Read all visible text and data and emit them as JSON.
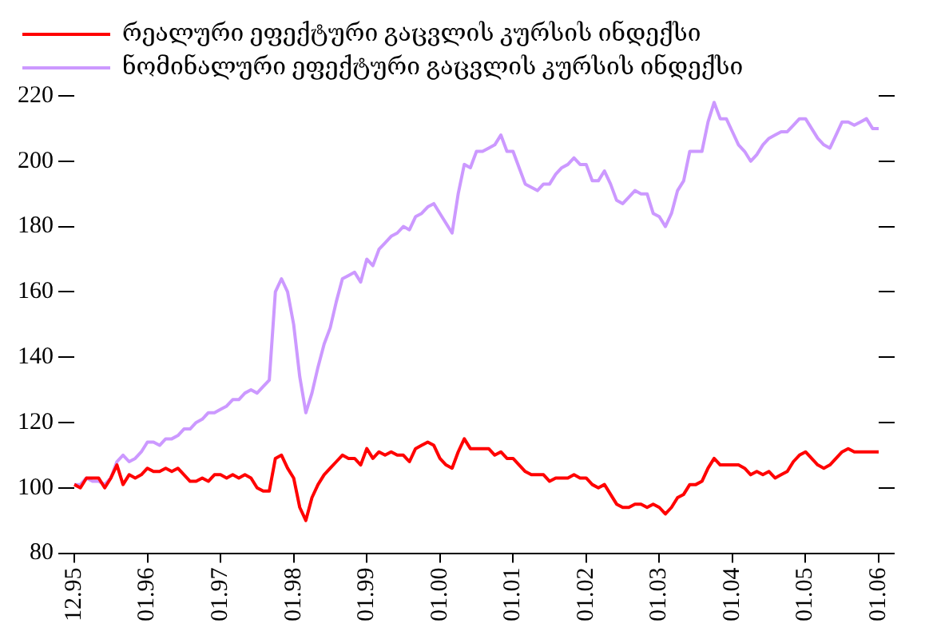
{
  "chart_data": {
    "type": "line",
    "categories": [
      "12.95",
      null,
      null,
      null,
      null,
      null,
      null,
      null,
      null,
      null,
      null,
      null,
      "01.96",
      null,
      null,
      null,
      null,
      null,
      null,
      null,
      null,
      null,
      null,
      null,
      "01.97",
      null,
      null,
      null,
      null,
      null,
      null,
      null,
      null,
      null,
      null,
      null,
      "01.98",
      null,
      null,
      null,
      null,
      null,
      null,
      null,
      null,
      null,
      null,
      null,
      "01.99",
      null,
      null,
      null,
      null,
      null,
      null,
      null,
      null,
      null,
      null,
      null,
      "01.00",
      null,
      null,
      null,
      null,
      null,
      null,
      null,
      null,
      null,
      null,
      null,
      "01.01",
      null,
      null,
      null,
      null,
      null,
      null,
      null,
      null,
      null,
      null,
      null,
      "01.02",
      null,
      null,
      null,
      null,
      null,
      null,
      null,
      null,
      null,
      null,
      null,
      "01.03",
      null,
      null,
      null,
      null,
      null,
      null,
      null,
      null,
      null,
      null,
      null,
      "01.04",
      null,
      null,
      null,
      null,
      null,
      null,
      null,
      null,
      null,
      null,
      null,
      "01.05",
      null,
      null,
      null,
      null,
      null,
      null,
      null,
      null,
      null,
      null,
      null,
      "01.06"
    ],
    "series": [
      {
        "name": "რეალური ეფექტური გაცვლის კურსის ინდექსი",
        "color": "#ff0000",
        "values": [
          101,
          100,
          103,
          103,
          103,
          100,
          103,
          107,
          101,
          104,
          103,
          104,
          106,
          105,
          105,
          106,
          105,
          106,
          104,
          102,
          102,
          103,
          102,
          104,
          104,
          103,
          104,
          103,
          104,
          103,
          100,
          99,
          99,
          109,
          110,
          106,
          103,
          94,
          90,
          97,
          101,
          104,
          106,
          108,
          110,
          109,
          109,
          107,
          112,
          109,
          111,
          110,
          111,
          110,
          110,
          108,
          112,
          113,
          114,
          113,
          109,
          107,
          106,
          111,
          115,
          112,
          112,
          112,
          112,
          110,
          111,
          109,
          109,
          107,
          105,
          104,
          104,
          104,
          102,
          103,
          103,
          103,
          104,
          103,
          103,
          101,
          100,
          101,
          98,
          95,
          94,
          94,
          95,
          95,
          94,
          95,
          94,
          92,
          94,
          97,
          98,
          101,
          101,
          102,
          106,
          109,
          107,
          107,
          107,
          107,
          106,
          104,
          105,
          104,
          105,
          103,
          104,
          105,
          108,
          110,
          111,
          109,
          107,
          106,
          107,
          109,
          111,
          112,
          111,
          111,
          111,
          111,
          111
        ]
      },
      {
        "name": "ნომინალური ეფექტური გაცვლის კურსის ინდექსი",
        "color": "#cc99ff",
        "values": [
          101,
          101,
          103,
          102,
          102,
          101,
          103,
          108,
          110,
          108,
          109,
          111,
          114,
          114,
          113,
          115,
          115,
          116,
          118,
          118,
          120,
          121,
          123,
          123,
          124,
          125,
          127,
          127,
          129,
          130,
          129,
          131,
          133,
          160,
          164,
          160,
          150,
          134,
          123,
          129,
          137,
          144,
          149,
          157,
          164,
          165,
          166,
          163,
          170,
          168,
          173,
          175,
          177,
          178,
          180,
          179,
          183,
          184,
          186,
          187,
          184,
          181,
          178,
          190,
          199,
          198,
          203,
          203,
          204,
          205,
          208,
          203,
          203,
          198,
          193,
          192,
          191,
          193,
          193,
          196,
          198,
          199,
          201,
          199,
          199,
          194,
          194,
          197,
          193,
          188,
          187,
          189,
          191,
          190,
          190,
          184,
          183,
          180,
          184,
          191,
          194,
          203,
          203,
          203,
          212,
          218,
          213,
          213,
          209,
          205,
          203,
          200,
          202,
          205,
          207,
          208,
          209,
          209,
          211,
          213,
          213,
          210,
          207,
          205,
          204,
          208,
          212,
          212,
          211,
          212,
          213,
          210,
          210
        ]
      }
    ],
    "ylim": [
      80,
      220
    ],
    "yticks": [
      80,
      100,
      120,
      140,
      160,
      180,
      200,
      220
    ],
    "grid": false,
    "legend": "top left",
    "marker": "none",
    "line_style": "solid"
  }
}
